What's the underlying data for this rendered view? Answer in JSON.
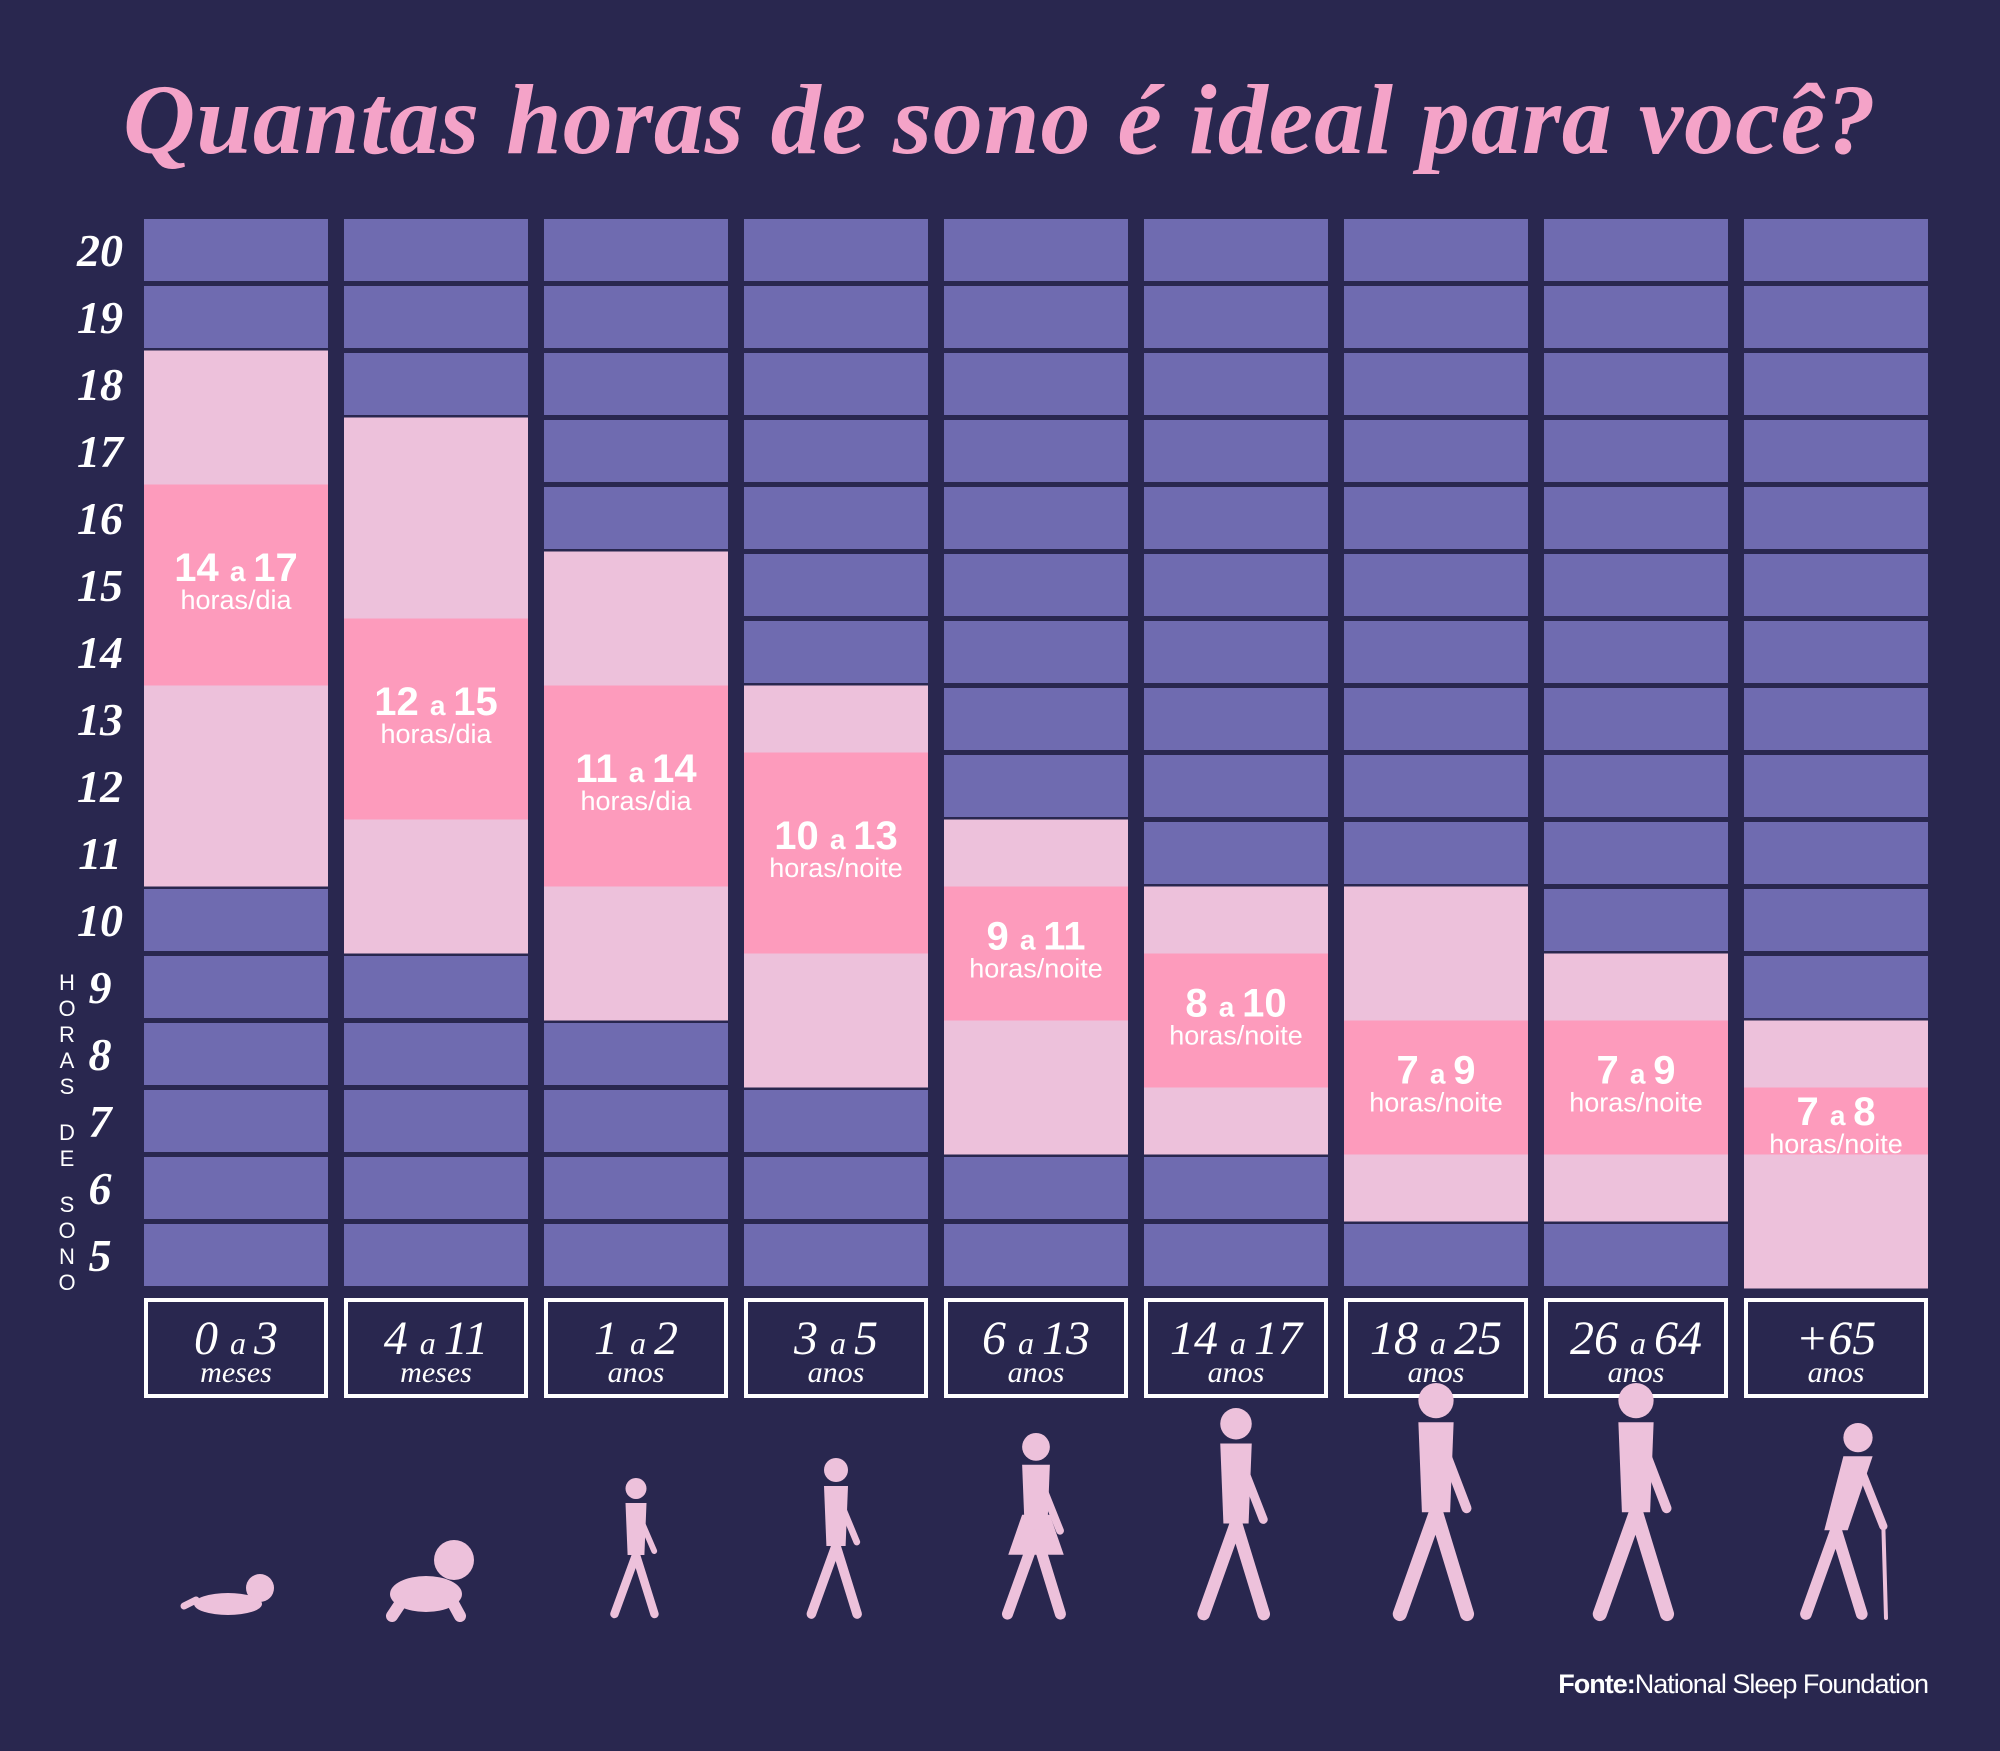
{
  "title": "Quantas horas de sono é ideal para você?",
  "source": {
    "label": "Fonte:",
    "text": "National Sleep Foundation"
  },
  "colors": {
    "background": "#29274f",
    "cell": "#6f6bb0",
    "acceptable": "#edc1db",
    "recommended": "#fd9bbc",
    "title": "#f4a3c8",
    "silhouette": "#edc1db"
  },
  "icons": [
    "newborn-icon",
    "crawling-baby-icon",
    "toddler-girl-icon",
    "preschool-boy-icon",
    "girl-icon",
    "teen-boy-icon",
    "young-adult-woman-icon",
    "adult-man-icon",
    "elderly-man-with-cane-icon"
  ],
  "chart_data": {
    "type": "bar",
    "title": "Quantas horas de sono é ideal para você?",
    "ylabel": "HORAS DE SONO",
    "ylim": [
      5,
      20
    ],
    "y_ticks": [
      20,
      19,
      18,
      17,
      16,
      15,
      14,
      13,
      12,
      11,
      10,
      9,
      8,
      7,
      6,
      5
    ],
    "groups": [
      {
        "age": "0 a 3",
        "age_from": "0",
        "age_to": "3",
        "unit": "meses",
        "acceptable": [
          11,
          19
        ],
        "recommended": [
          14,
          17
        ],
        "label_from": "14",
        "label_to": "17",
        "label_unit": "horas/dia"
      },
      {
        "age": "4 a 11",
        "age_from": "4",
        "age_to": "11",
        "unit": "meses",
        "acceptable": [
          10,
          18
        ],
        "recommended": [
          12,
          15
        ],
        "label_from": "12",
        "label_to": "15",
        "label_unit": "horas/dia"
      },
      {
        "age": "1 a 2",
        "age_from": "1",
        "age_to": "2",
        "unit": "anos",
        "acceptable": [
          9,
          16
        ],
        "recommended": [
          11,
          14
        ],
        "label_from": "11",
        "label_to": "14",
        "label_unit": "horas/dia"
      },
      {
        "age": "3 a 5",
        "age_from": "3",
        "age_to": "5",
        "unit": "anos",
        "acceptable": [
          8,
          14
        ],
        "recommended": [
          10,
          13
        ],
        "label_from": "10",
        "label_to": "13",
        "label_unit": "horas/noite"
      },
      {
        "age": "6 a 13",
        "age_from": "6",
        "age_to": "13",
        "unit": "anos",
        "acceptable": [
          7,
          12
        ],
        "recommended": [
          9,
          11
        ],
        "label_from": "9",
        "label_to": "11",
        "label_unit": "horas/noite"
      },
      {
        "age": "14 a 17",
        "age_from": "14",
        "age_to": "17",
        "unit": "anos",
        "acceptable": [
          7,
          11
        ],
        "recommended": [
          8,
          10
        ],
        "label_from": "8",
        "label_to": "10",
        "label_unit": "horas/noite"
      },
      {
        "age": "18 a 25",
        "age_from": "18",
        "age_to": "25",
        "unit": "anos",
        "acceptable": [
          6,
          11
        ],
        "recommended": [
          7,
          9
        ],
        "label_from": "7",
        "label_to": "9",
        "label_unit": "horas/noite"
      },
      {
        "age": "26 a 64",
        "age_from": "26",
        "age_to": "64",
        "unit": "anos",
        "acceptable": [
          6,
          10
        ],
        "recommended": [
          7,
          9
        ],
        "label_from": "7",
        "label_to": "9",
        "label_unit": "horas/noite"
      },
      {
        "age": "+65",
        "age_from": "+65",
        "age_to": "",
        "unit": "anos",
        "acceptable": [
          5,
          9
        ],
        "recommended": [
          7,
          8
        ],
        "label_from": "7",
        "label_to": "8",
        "label_unit": "horas/noite"
      }
    ],
    "connector": "a"
  }
}
